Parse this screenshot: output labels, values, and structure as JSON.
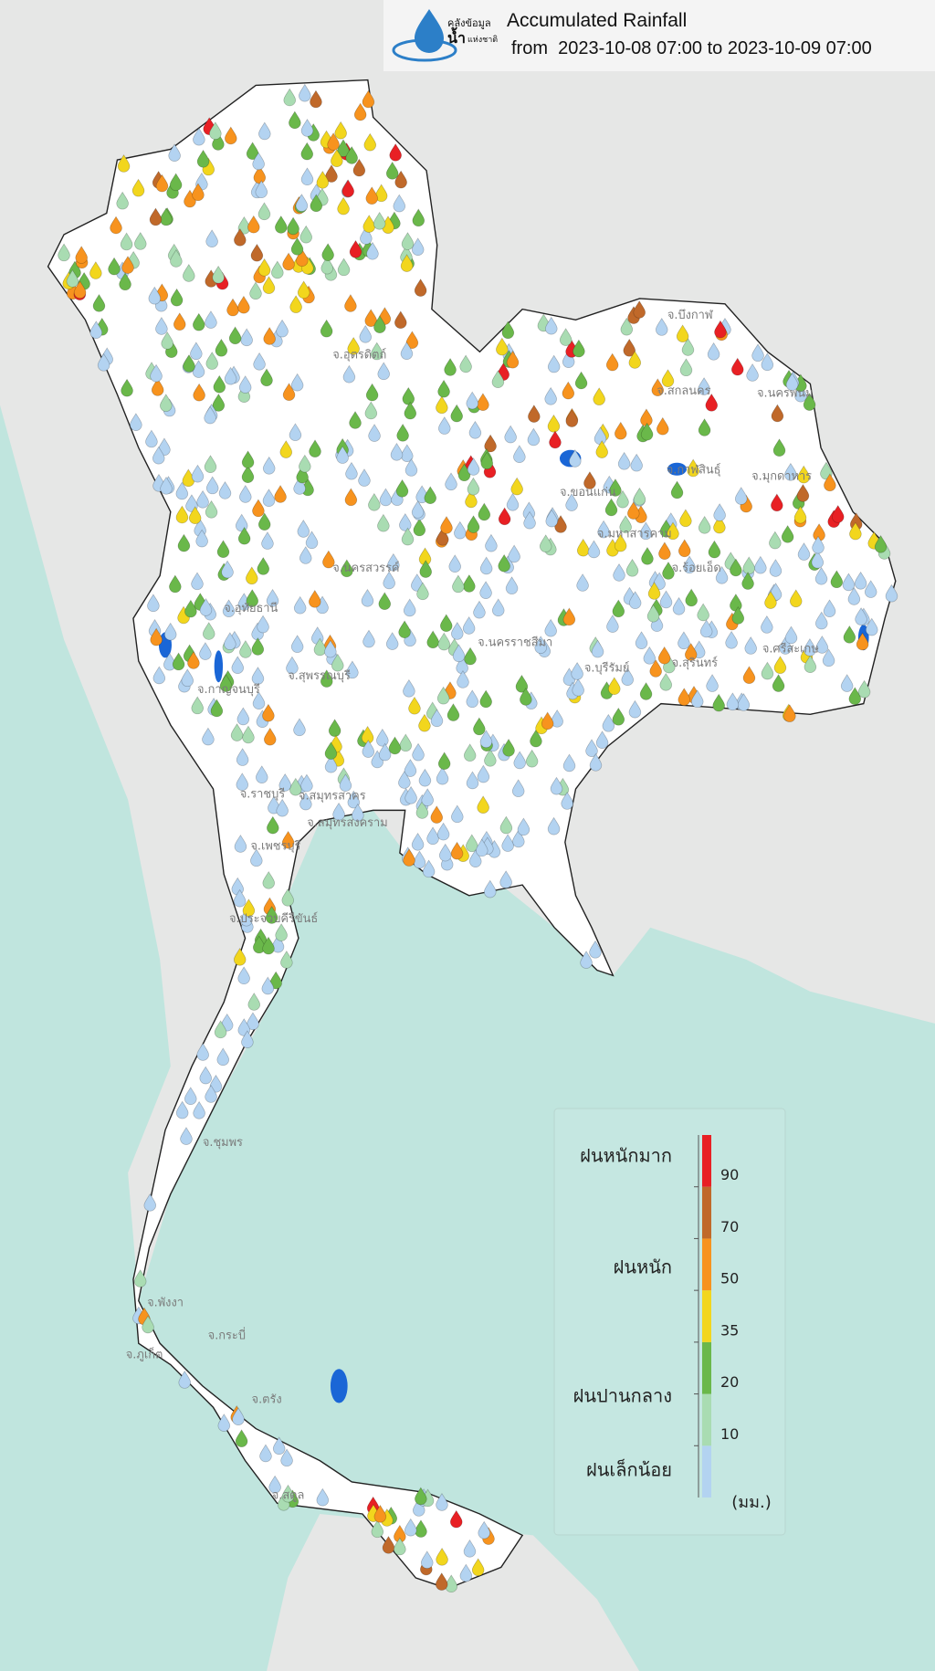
{
  "header": {
    "title": "Accumulated Rainfall",
    "subtitle": "from  2023-10-08 07:00 to 2023-10-09 07:00",
    "logo": {
      "line1": "คลังข้อมูล",
      "line2": "น้ำ",
      "line3": "แห่งชาติ"
    }
  },
  "legend": {
    "classes": [
      "ฝนหนักมาก",
      "ฝนหนัก",
      "ฝนปานกลาง",
      "ฝนเล็กน้อย"
    ],
    "ticks": [
      10,
      20,
      35,
      50,
      70,
      90
    ],
    "unit": "(มม.)",
    "colors": [
      "#b3d3f1",
      "#a9dcb2",
      "#6ab84a",
      "#f2d61d",
      "#f7931e",
      "#c0692a",
      "#e82024"
    ]
  },
  "labels": [
    "จ.อุตรดิตถ์",
    "จ.นครสวรรค์",
    "จ.อุทัยธานี",
    "จ.นครราชสีมา",
    "จ.บุรีรัมย์",
    "จ.สุรินทร์",
    "จ.ศรีสะเกษ",
    "จ.สกลนคร",
    "จ.นครพนม",
    "จ.บึงกาฬ",
    "จ.ขอนแก่น",
    "จ.มหาสารคาม",
    "จ.ร้อยเอ็ด",
    "จ.กาฬสินธุ์",
    "จ.มุกดาหาร",
    "จ.กาญจนบุรี",
    "จ.สุพรรณบุรี",
    "จ.ราชบุรี",
    "จ.สมุทรสาคร",
    "จ.สมุทรสงคราม",
    "จ.เพชรบุรี",
    "จ.ประจวบคีรีขันธ์",
    "จ.ชุมพร",
    "จ.พังงา",
    "จ.กระบี่",
    "จ.ภูเก็ต",
    "จ.ตรัง",
    "จ.สตูล"
  ]
}
